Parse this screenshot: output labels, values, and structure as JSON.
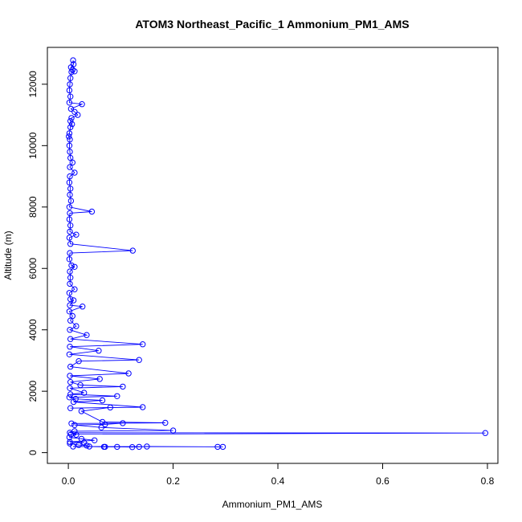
{
  "chart_data": {
    "type": "line",
    "title": "ATOM3 Northeast_Pacific_1 Ammonium_PM1_AMS",
    "xlabel": "Ammonium_PM1_AMS",
    "ylabel": "Altitude (m)",
    "xlim": [
      -0.04,
      0.82
    ],
    "ylim": [
      -350,
      13200
    ],
    "x_ticks": [
      0.0,
      0.2,
      0.4,
      0.6,
      0.8
    ],
    "x_tick_labels": [
      "0.0",
      "0.2",
      "0.4",
      "0.6",
      "0.8"
    ],
    "y_ticks": [
      0,
      2000,
      4000,
      6000,
      8000,
      10000,
      12000
    ],
    "y_tick_labels": [
      "0",
      "2000",
      "4000",
      "6000",
      "8000",
      "10000",
      "12000"
    ],
    "grid": false,
    "legend": "none",
    "colors": {
      "series": "#0000ff",
      "axis": "#000000"
    },
    "series": [
      {
        "marker": "open-circle",
        "points": [
          [
            0.009,
            12780
          ],
          [
            0.01,
            12650
          ],
          [
            0.005,
            12550
          ],
          [
            0.008,
            12470
          ],
          [
            0.012,
            12420
          ],
          [
            0.006,
            12400
          ],
          [
            0.004,
            12200
          ],
          [
            0.003,
            12000
          ],
          [
            0.002,
            11800
          ],
          [
            0.004,
            11600
          ],
          [
            0.002,
            11400
          ],
          [
            0.026,
            11350
          ],
          [
            0.005,
            11200
          ],
          [
            0.012,
            11100
          ],
          [
            0.018,
            11000
          ],
          [
            0.006,
            10900
          ],
          [
            0.004,
            10800
          ],
          [
            0.007,
            10700
          ],
          [
            0.004,
            10600
          ],
          [
            0.002,
            10400
          ],
          [
            0.001,
            10300
          ],
          [
            0.003,
            10200
          ],
          [
            0.002,
            10000
          ],
          [
            0.003,
            9800
          ],
          [
            0.004,
            9600
          ],
          [
            0.008,
            9450
          ],
          [
            0.003,
            9300
          ],
          [
            0.012,
            9120
          ],
          [
            0.003,
            9000
          ],
          [
            0.002,
            8800
          ],
          [
            0.004,
            8600
          ],
          [
            0.003,
            8400
          ],
          [
            0.005,
            8200
          ],
          [
            0.002,
            8000
          ],
          [
            0.045,
            7850
          ],
          [
            0.003,
            7800
          ],
          [
            0.002,
            7600
          ],
          [
            0.004,
            7400
          ],
          [
            0.003,
            7200
          ],
          [
            0.015,
            7100
          ],
          [
            0.002,
            7000
          ],
          [
            0.004,
            6800
          ],
          [
            0.123,
            6580
          ],
          [
            0.003,
            6500
          ],
          [
            0.002,
            6300
          ],
          [
            0.006,
            6100
          ],
          [
            0.012,
            6050
          ],
          [
            0.003,
            5900
          ],
          [
            0.004,
            5700
          ],
          [
            0.003,
            5500
          ],
          [
            0.012,
            5320
          ],
          [
            0.002,
            5200
          ],
          [
            0.004,
            5000
          ],
          [
            0.01,
            4960
          ],
          [
            0.003,
            4800
          ],
          [
            0.027,
            4760
          ],
          [
            0.002,
            4600
          ],
          [
            0.008,
            4450
          ],
          [
            0.004,
            4300
          ],
          [
            0.015,
            4120
          ],
          [
            0.003,
            4000
          ],
          [
            0.035,
            3830
          ],
          [
            0.004,
            3700
          ],
          [
            0.142,
            3530
          ],
          [
            0.003,
            3450
          ],
          [
            0.058,
            3320
          ],
          [
            0.002,
            3200
          ],
          [
            0.135,
            3020
          ],
          [
            0.02,
            2980
          ],
          [
            0.004,
            2800
          ],
          [
            0.115,
            2580
          ],
          [
            0.003,
            2500
          ],
          [
            0.06,
            2400
          ],
          [
            0.004,
            2300
          ],
          [
            0.023,
            2200
          ],
          [
            0.104,
            2150
          ],
          [
            0.003,
            2100
          ],
          [
            0.03,
            1950
          ],
          [
            0.004,
            1900
          ],
          [
            0.093,
            1840
          ],
          [
            0.002,
            1800
          ],
          [
            0.014,
            1750
          ],
          [
            0.065,
            1700
          ],
          [
            0.01,
            1650
          ],
          [
            0.142,
            1480
          ],
          [
            0.004,
            1450
          ],
          [
            0.08,
            1470
          ],
          [
            0.025,
            1350
          ],
          [
            0.065,
            1000
          ],
          [
            0.185,
            970
          ],
          [
            0.006,
            950
          ],
          [
            0.104,
            960
          ],
          [
            0.07,
            920
          ],
          [
            0.012,
            900
          ],
          [
            0.063,
            820
          ],
          [
            0.2,
            720
          ],
          [
            0.012,
            700
          ],
          [
            0.003,
            650
          ],
          [
            0.796,
            640
          ],
          [
            0.005,
            600
          ],
          [
            0.015,
            580
          ],
          [
            0.002,
            500
          ],
          [
            0.025,
            450
          ],
          [
            0.05,
            400
          ],
          [
            0.003,
            350
          ],
          [
            0.03,
            330
          ],
          [
            0.003,
            300
          ],
          [
            0.02,
            250
          ],
          [
            0.035,
            230
          ],
          [
            0.04,
            200
          ],
          [
            0.068,
            190
          ],
          [
            0.07,
            190
          ],
          [
            0.093,
            190
          ],
          [
            0.122,
            180
          ],
          [
            0.135,
            190
          ],
          [
            0.15,
            200
          ],
          [
            0.285,
            190
          ],
          [
            0.295,
            190
          ],
          [
            0.009,
            200
          ]
        ]
      }
    ]
  }
}
